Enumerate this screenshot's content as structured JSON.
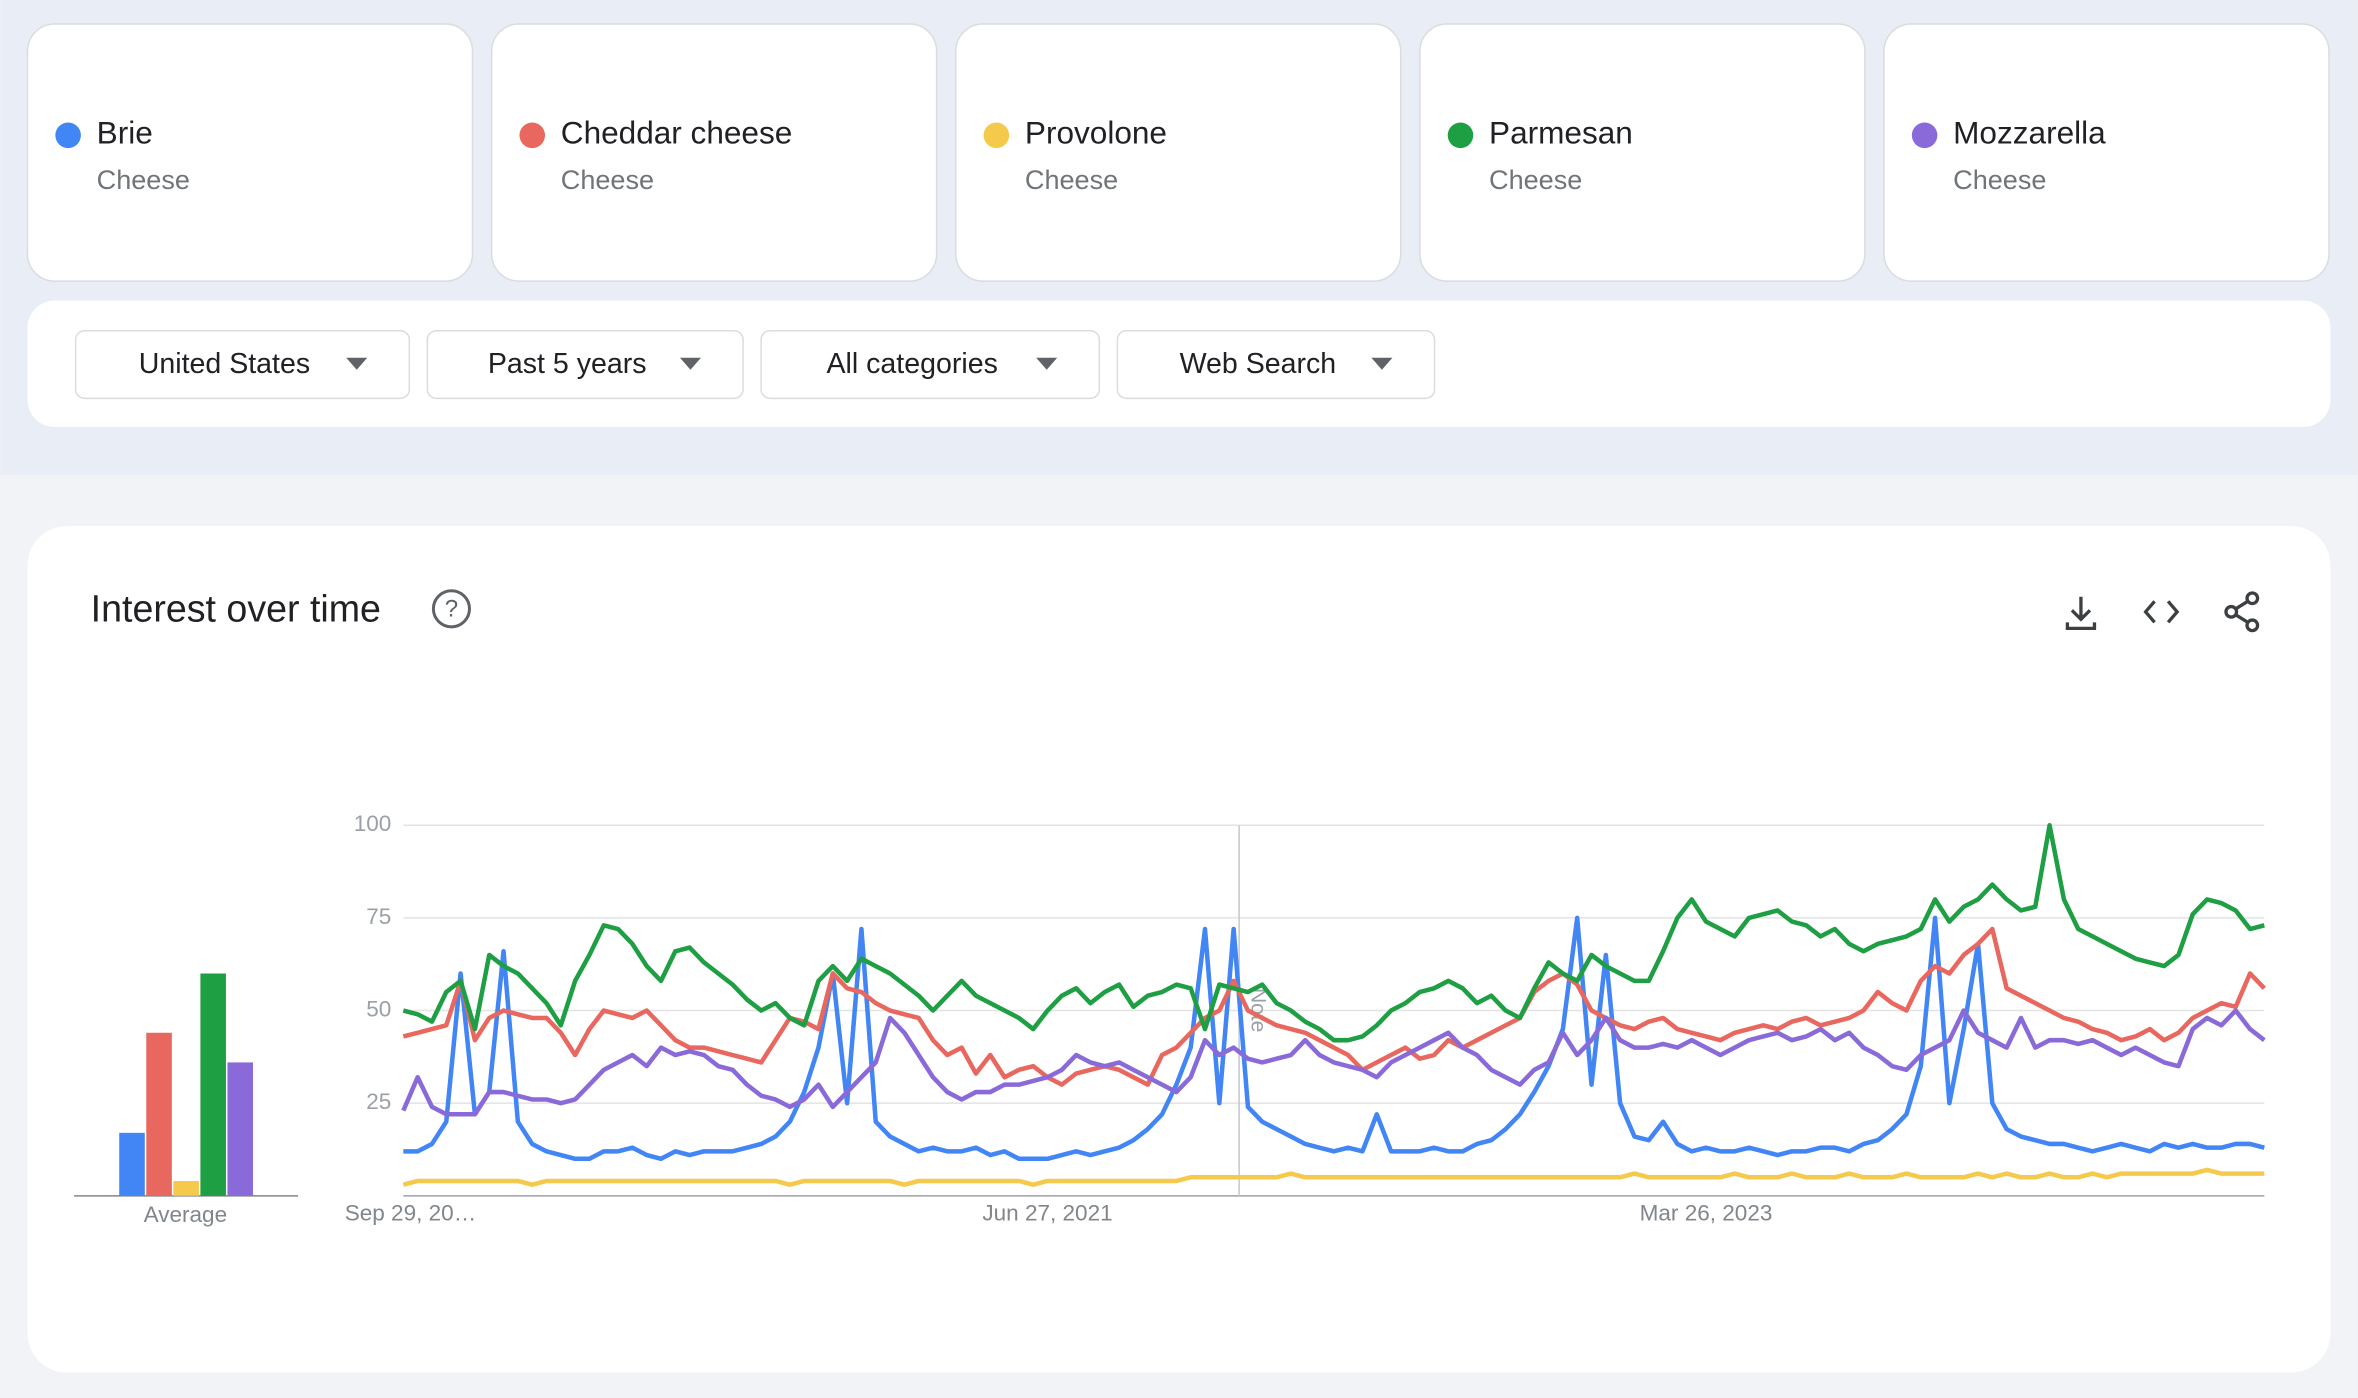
{
  "chart_data": {
    "type": "line",
    "title": "Interest over time",
    "filters": [
      "United States",
      "Past 5 years",
      "All categories",
      "Web Search"
    ],
    "average_label": "Average",
    "note_label": "Note",
    "ylim": [
      0,
      100
    ],
    "yticks": [
      25,
      50,
      75,
      100
    ],
    "grid": true,
    "categories": [
      "Sep 29, 20…",
      null,
      null,
      null,
      null,
      null,
      null,
      null,
      null,
      null,
      null,
      null,
      null,
      null,
      null,
      null,
      null,
      null,
      null,
      null,
      null,
      null,
      null,
      null,
      null,
      null,
      null,
      null,
      null,
      null,
      null,
      null,
      null,
      null,
      null,
      null,
      null,
      null,
      null,
      null,
      null,
      null,
      null,
      null,
      null,
      "Jun 27, 2021",
      null,
      null,
      null,
      null,
      null,
      null,
      null,
      null,
      null,
      null,
      null,
      null,
      null,
      null,
      null,
      null,
      null,
      null,
      null,
      null,
      null,
      null,
      null,
      null,
      null,
      null,
      null,
      null,
      null,
      null,
      null,
      null,
      null,
      null,
      null,
      null,
      null,
      null,
      null,
      null,
      null,
      null,
      null,
      null,
      null,
      "Mar 26, 2023",
      null,
      null,
      null,
      null,
      null,
      null,
      null,
      null,
      null,
      null,
      null,
      null,
      null,
      null,
      null,
      null,
      null,
      null,
      null,
      null,
      null,
      null,
      null,
      null,
      null,
      null,
      null,
      null,
      null,
      null,
      null,
      null,
      null,
      null,
      null,
      null,
      null,
      null,
      null
    ],
    "series": [
      {
        "name": "Brie",
        "subtitle": "Cheese",
        "color": "#4285f4",
        "average": 17,
        "values": [
          12,
          12,
          14,
          20,
          60,
          22,
          28,
          66,
          20,
          14,
          12,
          11,
          10,
          10,
          12,
          12,
          13,
          11,
          10,
          12,
          11,
          12,
          12,
          12,
          13,
          14,
          16,
          20,
          28,
          40,
          60,
          25,
          72,
          20,
          16,
          14,
          12,
          13,
          12,
          12,
          13,
          11,
          12,
          10,
          10,
          10,
          11,
          12,
          11,
          12,
          13,
          15,
          18,
          22,
          30,
          40,
          72,
          25,
          72,
          24,
          20,
          18,
          16,
          14,
          13,
          12,
          13,
          12,
          22,
          12,
          12,
          12,
          13,
          12,
          12,
          14,
          15,
          18,
          22,
          28,
          35,
          45,
          75,
          30,
          65,
          25,
          16,
          15,
          20,
          14,
          12,
          13,
          12,
          12,
          13,
          12,
          11,
          12,
          12,
          13,
          13,
          12,
          14,
          15,
          18,
          22,
          35,
          75,
          25,
          45,
          68,
          25,
          18,
          16,
          15,
          14,
          14,
          13,
          12,
          13,
          14,
          13,
          12,
          14,
          13,
          14,
          13,
          13,
          14,
          14,
          13
        ]
      },
      {
        "name": "Cheddar cheese",
        "subtitle": "Cheese",
        "color": "#e8675e",
        "average": 44,
        "values": [
          43,
          44,
          45,
          46,
          58,
          42,
          48,
          50,
          49,
          48,
          48,
          44,
          38,
          45,
          50,
          49,
          48,
          50,
          46,
          42,
          40,
          40,
          39,
          38,
          37,
          36,
          42,
          48,
          47,
          45,
          60,
          56,
          55,
          52,
          50,
          49,
          48,
          42,
          38,
          40,
          33,
          38,
          32,
          34,
          35,
          32,
          30,
          33,
          34,
          35,
          34,
          32,
          30,
          38,
          40,
          44,
          48,
          50,
          58,
          50,
          48,
          46,
          45,
          44,
          42,
          40,
          38,
          34,
          36,
          38,
          40,
          37,
          38,
          42,
          40,
          42,
          44,
          46,
          48,
          55,
          58,
          60,
          57,
          50,
          48,
          46,
          45,
          47,
          48,
          45,
          44,
          43,
          42,
          44,
          45,
          46,
          45,
          47,
          48,
          46,
          47,
          48,
          50,
          55,
          52,
          50,
          58,
          62,
          60,
          65,
          68,
          72,
          56,
          54,
          52,
          50,
          48,
          47,
          45,
          44,
          42,
          43,
          45,
          42,
          44,
          48,
          50,
          52,
          51,
          60,
          56
        ]
      },
      {
        "name": "Provolone",
        "subtitle": "Cheese",
        "color": "#f5c94b",
        "average": 4,
        "values": [
          3,
          4,
          4,
          4,
          4,
          4,
          4,
          4,
          4,
          3,
          4,
          4,
          4,
          4,
          4,
          4,
          4,
          4,
          4,
          4,
          4,
          4,
          4,
          4,
          4,
          4,
          4,
          3,
          4,
          4,
          4,
          4,
          4,
          4,
          4,
          3,
          4,
          4,
          4,
          4,
          4,
          4,
          4,
          4,
          3,
          4,
          4,
          4,
          4,
          4,
          4,
          4,
          4,
          4,
          4,
          5,
          5,
          5,
          5,
          5,
          5,
          5,
          6,
          5,
          5,
          5,
          5,
          5,
          5,
          5,
          5,
          5,
          5,
          5,
          5,
          5,
          5,
          5,
          5,
          5,
          5,
          5,
          5,
          5,
          5,
          5,
          6,
          5,
          5,
          5,
          5,
          5,
          5,
          6,
          5,
          5,
          5,
          6,
          5,
          5,
          5,
          6,
          5,
          5,
          5,
          6,
          5,
          5,
          5,
          5,
          6,
          5,
          6,
          5,
          5,
          6,
          5,
          5,
          6,
          5,
          6,
          6,
          6,
          6,
          6,
          6,
          7,
          6,
          6,
          6,
          6
        ]
      },
      {
        "name": "Parmesan",
        "subtitle": "Cheese",
        "color": "#1e9f44",
        "average": 60,
        "values": [
          50,
          49,
          47,
          55,
          58,
          45,
          65,
          62,
          60,
          56,
          52,
          46,
          58,
          65,
          73,
          72,
          68,
          62,
          58,
          66,
          67,
          63,
          60,
          57,
          53,
          50,
          52,
          48,
          46,
          58,
          62,
          58,
          64,
          62,
          60,
          57,
          54,
          50,
          54,
          58,
          54,
          52,
          50,
          48,
          45,
          50,
          54,
          56,
          52,
          55,
          57,
          51,
          54,
          55,
          57,
          56,
          45,
          57,
          56,
          55,
          57,
          52,
          50,
          47,
          45,
          42,
          42,
          43,
          46,
          50,
          52,
          55,
          56,
          58,
          56,
          52,
          54,
          50,
          48,
          56,
          63,
          60,
          58,
          65,
          62,
          60,
          58,
          58,
          66,
          75,
          80,
          74,
          72,
          70,
          75,
          76,
          77,
          74,
          73,
          70,
          72,
          68,
          66,
          68,
          69,
          70,
          72,
          80,
          74,
          78,
          80,
          84,
          80,
          77,
          78,
          100,
          80,
          72,
          70,
          68,
          66,
          64,
          63,
          62,
          65,
          76,
          80,
          79,
          77,
          72,
          73
        ]
      },
      {
        "name": "Mozzarella",
        "subtitle": "Cheese",
        "color": "#8a6ad8",
        "average": 36,
        "values": [
          23,
          32,
          24,
          22,
          22,
          22,
          28,
          28,
          27,
          26,
          26,
          25,
          26,
          30,
          34,
          36,
          38,
          35,
          40,
          38,
          39,
          38,
          35,
          34,
          30,
          27,
          26,
          24,
          26,
          30,
          24,
          28,
          32,
          36,
          48,
          44,
          38,
          32,
          28,
          26,
          28,
          28,
          30,
          30,
          31,
          32,
          34,
          38,
          36,
          35,
          36,
          34,
          32,
          30,
          28,
          32,
          42,
          38,
          40,
          37,
          36,
          37,
          38,
          42,
          38,
          36,
          35,
          34,
          32,
          36,
          38,
          40,
          42,
          44,
          40,
          38,
          34,
          32,
          30,
          34,
          36,
          44,
          38,
          42,
          48,
          42,
          40,
          40,
          41,
          40,
          42,
          40,
          38,
          40,
          42,
          43,
          44,
          42,
          43,
          45,
          42,
          44,
          40,
          38,
          35,
          34,
          38,
          40,
          42,
          50,
          44,
          42,
          40,
          48,
          40,
          42,
          42,
          41,
          42,
          40,
          38,
          40,
          38,
          36,
          35,
          45,
          48,
          46,
          50,
          45,
          42
        ]
      }
    ]
  }
}
